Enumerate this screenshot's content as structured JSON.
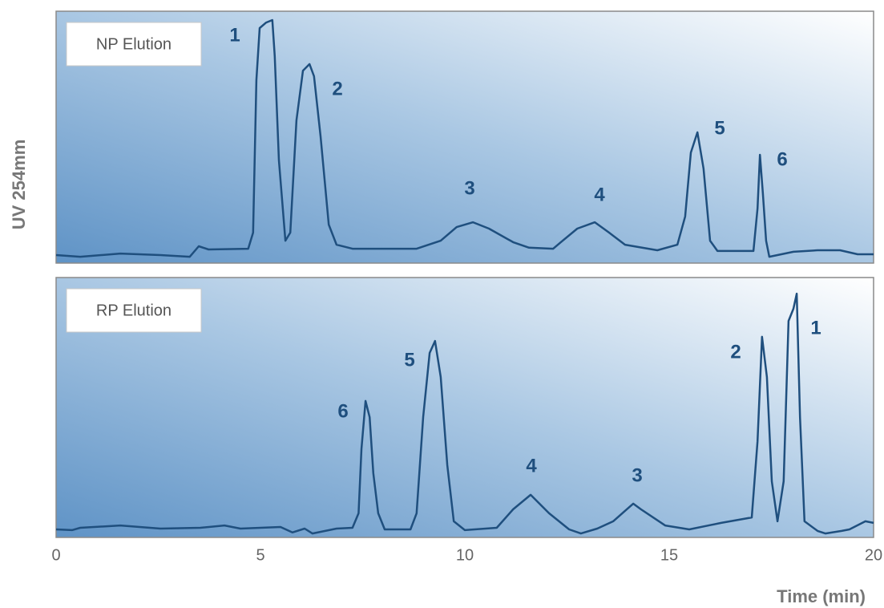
{
  "chart_data": [
    {
      "type": "line",
      "title": "NP Elution",
      "ylabel": "UV 254mm",
      "color": "#1f4f7e",
      "xlim": [
        0,
        20
      ],
      "ylim": [
        0,
        100
      ],
      "annotations": [
        "1",
        "2",
        "3",
        "4",
        "5",
        "6"
      ],
      "x": [
        0,
        0.59,
        1.57,
        2.55,
        3.27,
        3.49,
        3.73,
        4.7,
        4.82,
        4.9,
        4.98,
        5.14,
        5.29,
        5.35,
        5.45,
        5.61,
        5.73,
        5.88,
        6.04,
        6.2,
        6.31,
        6.47,
        6.67,
        6.86,
        7.25,
        8.82,
        9.41,
        9.8,
        10.2,
        10.59,
        11.18,
        11.57,
        12.16,
        12.35,
        12.75,
        13.18,
        13.53,
        13.92,
        14.71,
        15.2,
        15.39,
        15.53,
        15.69,
        15.84,
        16.0,
        16.18,
        17.06,
        17.16,
        17.22,
        17.29,
        17.37,
        17.45,
        18.04,
        18.63,
        19.18,
        19.61,
        20
      ],
      "values": [
        3.2,
        2.5,
        3.8,
        3.2,
        2.5,
        6.7,
        5.4,
        5.7,
        12.1,
        72.6,
        93.3,
        95.5,
        96.5,
        82.2,
        40.8,
        8.9,
        12.1,
        56.7,
        76.4,
        79.0,
        74.2,
        50.3,
        15.3,
        7.3,
        5.7,
        5.7,
        8.9,
        14.3,
        16.2,
        13.7,
        8.3,
        6.1,
        5.7,
        8.3,
        13.7,
        16.2,
        12.1,
        7.3,
        5.1,
        7.3,
        18.5,
        43.9,
        51.9,
        37.6,
        8.9,
        4.8,
        4.8,
        21.7,
        43.0,
        28.0,
        8.9,
        2.5,
        4.5,
        5.1,
        5.1,
        3.5,
        3.5
      ]
    },
    {
      "type": "line",
      "title": "RP Elution",
      "xlabel": "Time (min)",
      "color": "#1f4f7e",
      "xlim": [
        0,
        20
      ],
      "ylim": [
        0,
        100
      ],
      "xticks": [
        0,
        5,
        10,
        15,
        20
      ],
      "annotations": [
        "6",
        "5",
        "4",
        "3",
        "2",
        "1"
      ],
      "x": [
        0,
        0.39,
        0.59,
        1.57,
        2.55,
        3.53,
        4.12,
        4.51,
        5.49,
        5.78,
        6.08,
        6.27,
        6.86,
        7.25,
        7.4,
        7.47,
        7.57,
        7.67,
        7.76,
        7.88,
        8.04,
        8.67,
        8.82,
        8.98,
        9.14,
        9.27,
        9.41,
        9.57,
        9.73,
        10.0,
        10.78,
        11.18,
        11.61,
        12.06,
        12.55,
        12.84,
        13.24,
        13.63,
        14.12,
        14.31,
        14.9,
        15.49,
        16.27,
        17.02,
        17.16,
        17.27,
        17.39,
        17.51,
        17.65,
        17.8,
        17.92,
        18.04,
        18.12,
        18.2,
        18.31,
        18.63,
        18.82,
        19.22,
        19.41,
        19.8,
        20
      ],
      "values": [
        3.1,
        2.8,
        3.7,
        4.6,
        3.4,
        3.7,
        4.6,
        3.4,
        4.0,
        1.9,
        3.4,
        1.5,
        3.4,
        3.7,
        9.3,
        34.0,
        52.5,
        46.3,
        24.7,
        9.3,
        3.1,
        3.1,
        9.3,
        46.3,
        71.0,
        75.6,
        61.7,
        27.8,
        6.2,
        2.8,
        3.7,
        10.8,
        16.4,
        9.3,
        3.1,
        1.5,
        3.4,
        6.2,
        13.0,
        10.8,
        4.6,
        3.1,
        5.6,
        7.7,
        37.0,
        77.2,
        61.7,
        21.6,
        6.2,
        21.6,
        83.3,
        88.0,
        93.8,
        46.3,
        6.2,
        2.5,
        1.5,
        2.5,
        3.1,
        6.2,
        5.6
      ]
    }
  ]
}
